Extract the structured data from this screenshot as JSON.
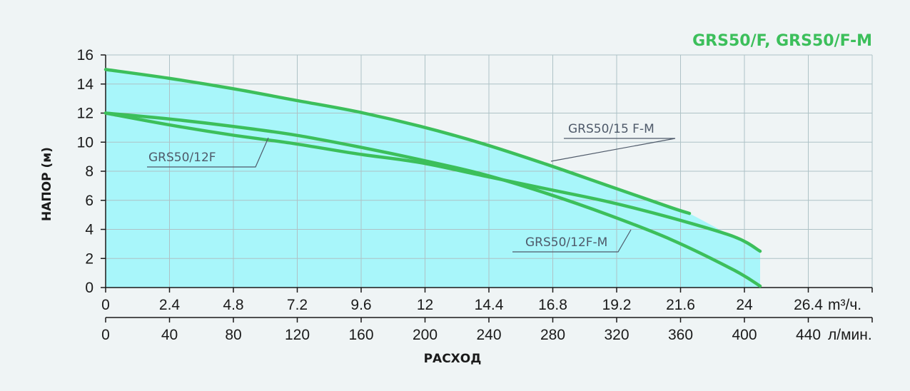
{
  "chart_data": {
    "type": "line",
    "title": "GRS50/F, GRS50/F-M",
    "ylabel": "НАПОР (м)",
    "xlabel": "РАСХОД",
    "x_unit_primary": "m³/ч.",
    "x_unit_secondary": "л/мин.",
    "x_ticks_m3h": [
      "0",
      "2.4",
      "4.8",
      "7.2",
      "9.6",
      "12",
      "14.4",
      "16.8",
      "19.2",
      "21.6",
      "24",
      "26.4"
    ],
    "x_ticks_lmin": [
      "0",
      "40",
      "80",
      "120",
      "160",
      "200",
      "240",
      "280",
      "320",
      "360",
      "400",
      "440"
    ],
    "y_ticks": [
      "0",
      "2",
      "4",
      "6",
      "8",
      "10",
      "12",
      "14",
      "16"
    ],
    "xlim": [
      0,
      29.28
    ],
    "ylim": [
      0,
      16
    ],
    "grid": true,
    "colors": {
      "curve": "#3cbf5b",
      "fill": "#a8f6fa",
      "title": "#3cbf5b",
      "label": "#4f5a6a",
      "grid": "#aec2c6"
    },
    "series": [
      {
        "name": "GRS50/15 F-M",
        "x": [
          0,
          2.4,
          4.8,
          7.2,
          9.6,
          12,
          14.4,
          16.8,
          19.2,
          21.6,
          22.3
        ],
        "y": [
          15,
          14.4,
          13.7,
          12.9,
          12.1,
          11.1,
          9.9,
          8.5,
          7.0,
          5.5,
          5.1
        ]
      },
      {
        "name": "GRS50/12F-M",
        "x": [
          0,
          2.4,
          4.8,
          7.2,
          9.6,
          12,
          14.4,
          16.8,
          19.2,
          21.6,
          24,
          25.0
        ],
        "y": [
          12,
          11.6,
          11.1,
          10.5,
          9.7,
          8.8,
          7.8,
          6.5,
          5.0,
          3.3,
          1.2,
          0.1
        ]
      },
      {
        "name": "GRS50/12F",
        "x": [
          0,
          2.4,
          4.8,
          7.2,
          9.6,
          12,
          14.4,
          16.8,
          19.2,
          21.6,
          24,
          25.0
        ],
        "y": [
          12,
          11.2,
          10.5,
          9.9,
          9.2,
          8.6,
          7.7,
          6.8,
          5.9,
          4.8,
          3.5,
          2.5
        ]
      }
    ],
    "fill_region": {
      "x": [
        0,
        25.0,
        25.0,
        0
      ],
      "y": [
        15,
        2.5,
        0,
        0
      ]
    }
  }
}
